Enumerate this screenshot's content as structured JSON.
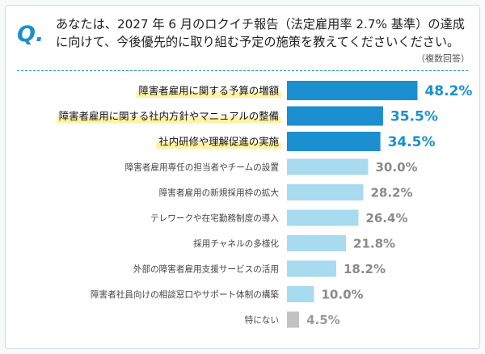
{
  "header": {
    "q_mark": "Q.",
    "question": "あなたは、2027 年 6 月のロクイチ報告（法定雇用率 2.7% 基準）の達成に向けて、今後優先的に取り組む予定の施策を教えてくださいください。",
    "note": "（複数回答）"
  },
  "colors": {
    "accent": "#1b8fd0",
    "highlight": "#fff3a3",
    "bar_top": "#1b8fd0",
    "bar_mid": "#a8daf0",
    "bar_other": "#c2c2c2",
    "value_top": "#1b8fd0",
    "value_mid": "#8a8a8a",
    "value_other": "#9a9a9a"
  },
  "chart_data": {
    "type": "bar",
    "orientation": "horizontal",
    "unit": "%",
    "categories": [
      "障害者雇用に関する予算の増額",
      "障害者雇用に関する社内方針やマニュアルの整備",
      "社内研修や理解促進の実施",
      "障害者雇用専任の担当者やチームの設置",
      "障害者雇用の新規採用枠の拡大",
      "テレワークや在宅勤務制度の導入",
      "採用チャネルの多様化",
      "外部の障害者雇用支援サービスの活用",
      "障害者社員向けの相談窓口やサポート体制の構築",
      "特にない"
    ],
    "values": [
      48.2,
      35.5,
      34.5,
      30.0,
      28.2,
      26.4,
      21.8,
      18.2,
      10.0,
      4.5
    ],
    "value_labels": [
      "48.2%",
      "35.5%",
      "34.5%",
      "30.0%",
      "28.2%",
      "26.4%",
      "21.8%",
      "18.2%",
      "10.0%",
      "4.5%"
    ],
    "highlighted_top": 3,
    "title": "",
    "xlabel": "",
    "ylabel": "",
    "xlim": [
      0,
      50
    ],
    "grid": false,
    "legend": "none"
  }
}
